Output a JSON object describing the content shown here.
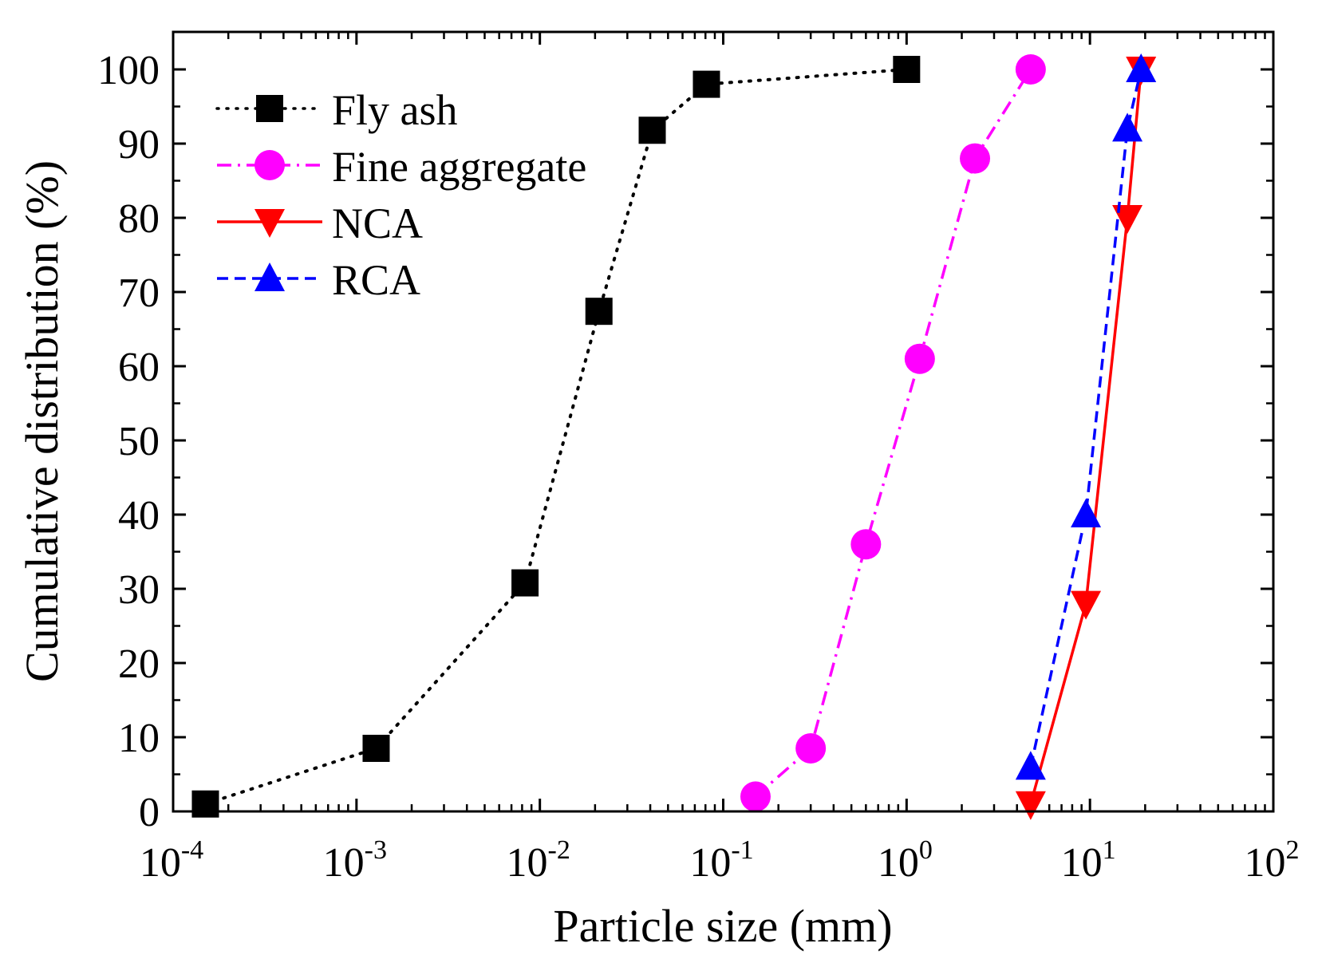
{
  "chart_data": {
    "type": "line",
    "xlabel": "Particle size (mm)",
    "ylabel": "Cumulative distribution (%)",
    "xscale": "log",
    "xlim": [
      0.0001,
      100
    ],
    "ylim": [
      0,
      100
    ],
    "xticks": [
      {
        "base": "10",
        "exp": "-4",
        "v": 0.0001
      },
      {
        "base": "10",
        "exp": "-3",
        "v": 0.001
      },
      {
        "base": "10",
        "exp": "-2",
        "v": 0.01
      },
      {
        "base": "10",
        "exp": "-1",
        "v": 0.1
      },
      {
        "base": "10",
        "exp": "0",
        "v": 1
      },
      {
        "base": "10",
        "exp": "1",
        "v": 10
      },
      {
        "base": "10",
        "exp": "2",
        "v": 100
      }
    ],
    "yticks": [
      "0",
      "10",
      "20",
      "30",
      "40",
      "50",
      "60",
      "70",
      "80",
      "90",
      "100"
    ],
    "legend_position": "top-left",
    "series": [
      {
        "name": "Fly ash",
        "color": "#000000",
        "marker": "square",
        "dash": "2,10",
        "x": [
          0.00015,
          0.00128,
          0.0083,
          0.021,
          0.041,
          0.081,
          1.0
        ],
        "y": [
          1,
          8.5,
          30.8,
          67.4,
          91.8,
          98,
          100
        ]
      },
      {
        "name": "Fine aggregate",
        "color": "#ff00ff",
        "marker": "circle",
        "dash": "18,8,3,8",
        "x": [
          0.15,
          0.3,
          0.6,
          1.18,
          2.36,
          4.75
        ],
        "y": [
          2,
          8.5,
          36,
          61,
          88,
          100
        ]
      },
      {
        "name": "NCA",
        "color": "#ff0000",
        "marker": "triangle-down",
        "dash": "",
        "x": [
          4.75,
          9.5,
          16,
          19
        ],
        "y": [
          1,
          28,
          80,
          100
        ]
      },
      {
        "name": "RCA",
        "color": "#0000ff",
        "marker": "triangle-up",
        "dash": "14,8",
        "x": [
          4.75,
          9.5,
          16,
          19
        ],
        "y": [
          6,
          40,
          92,
          100
        ]
      }
    ]
  }
}
